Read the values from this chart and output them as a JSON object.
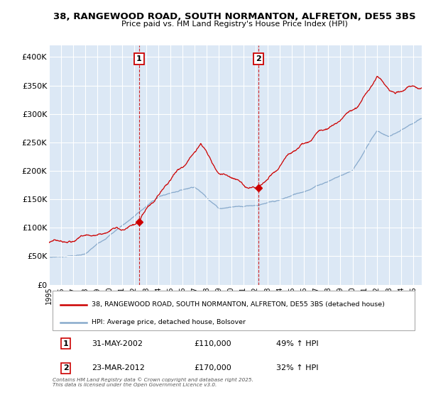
{
  "title": "38, RANGEWOOD ROAD, SOUTH NORMANTON, ALFRETON, DE55 3BS",
  "subtitle": "Price paid vs. HM Land Registry's House Price Index (HPI)",
  "legend_line1": "38, RANGEWOOD ROAD, SOUTH NORMANTON, ALFRETON, DE55 3BS (detached house)",
  "legend_line2": "HPI: Average price, detached house, Bolsover",
  "red_color": "#cc0000",
  "blue_color": "#88aacc",
  "shade_color": "#dce8f5",
  "background_color": "#dce8f5",
  "plot_bg_color": "#dce8f5",
  "ylim": [
    0,
    420000
  ],
  "yticks": [
    0,
    50000,
    100000,
    150000,
    200000,
    250000,
    300000,
    350000,
    400000
  ],
  "ytick_labels": [
    "£0",
    "£50K",
    "£100K",
    "£150K",
    "£200K",
    "£250K",
    "£300K",
    "£350K",
    "£400K"
  ],
  "xlim_start": 1995.0,
  "xlim_end": 2025.7,
  "purchase1_date": 2002.42,
  "purchase1_price": 110000,
  "purchase1_label": "1",
  "purchase1_text": "31-MAY-2002",
  "purchase1_pct": "49% ↑ HPI",
  "purchase2_date": 2012.23,
  "purchase2_price": 170000,
  "purchase2_label": "2",
  "purchase2_text": "23-MAR-2012",
  "purchase2_pct": "32% ↑ HPI",
  "footer": "Contains HM Land Registry data © Crown copyright and database right 2025.\nThis data is licensed under the Open Government Licence v3.0.",
  "grid_color": "#ffffff",
  "vline_color": "#cc0000"
}
